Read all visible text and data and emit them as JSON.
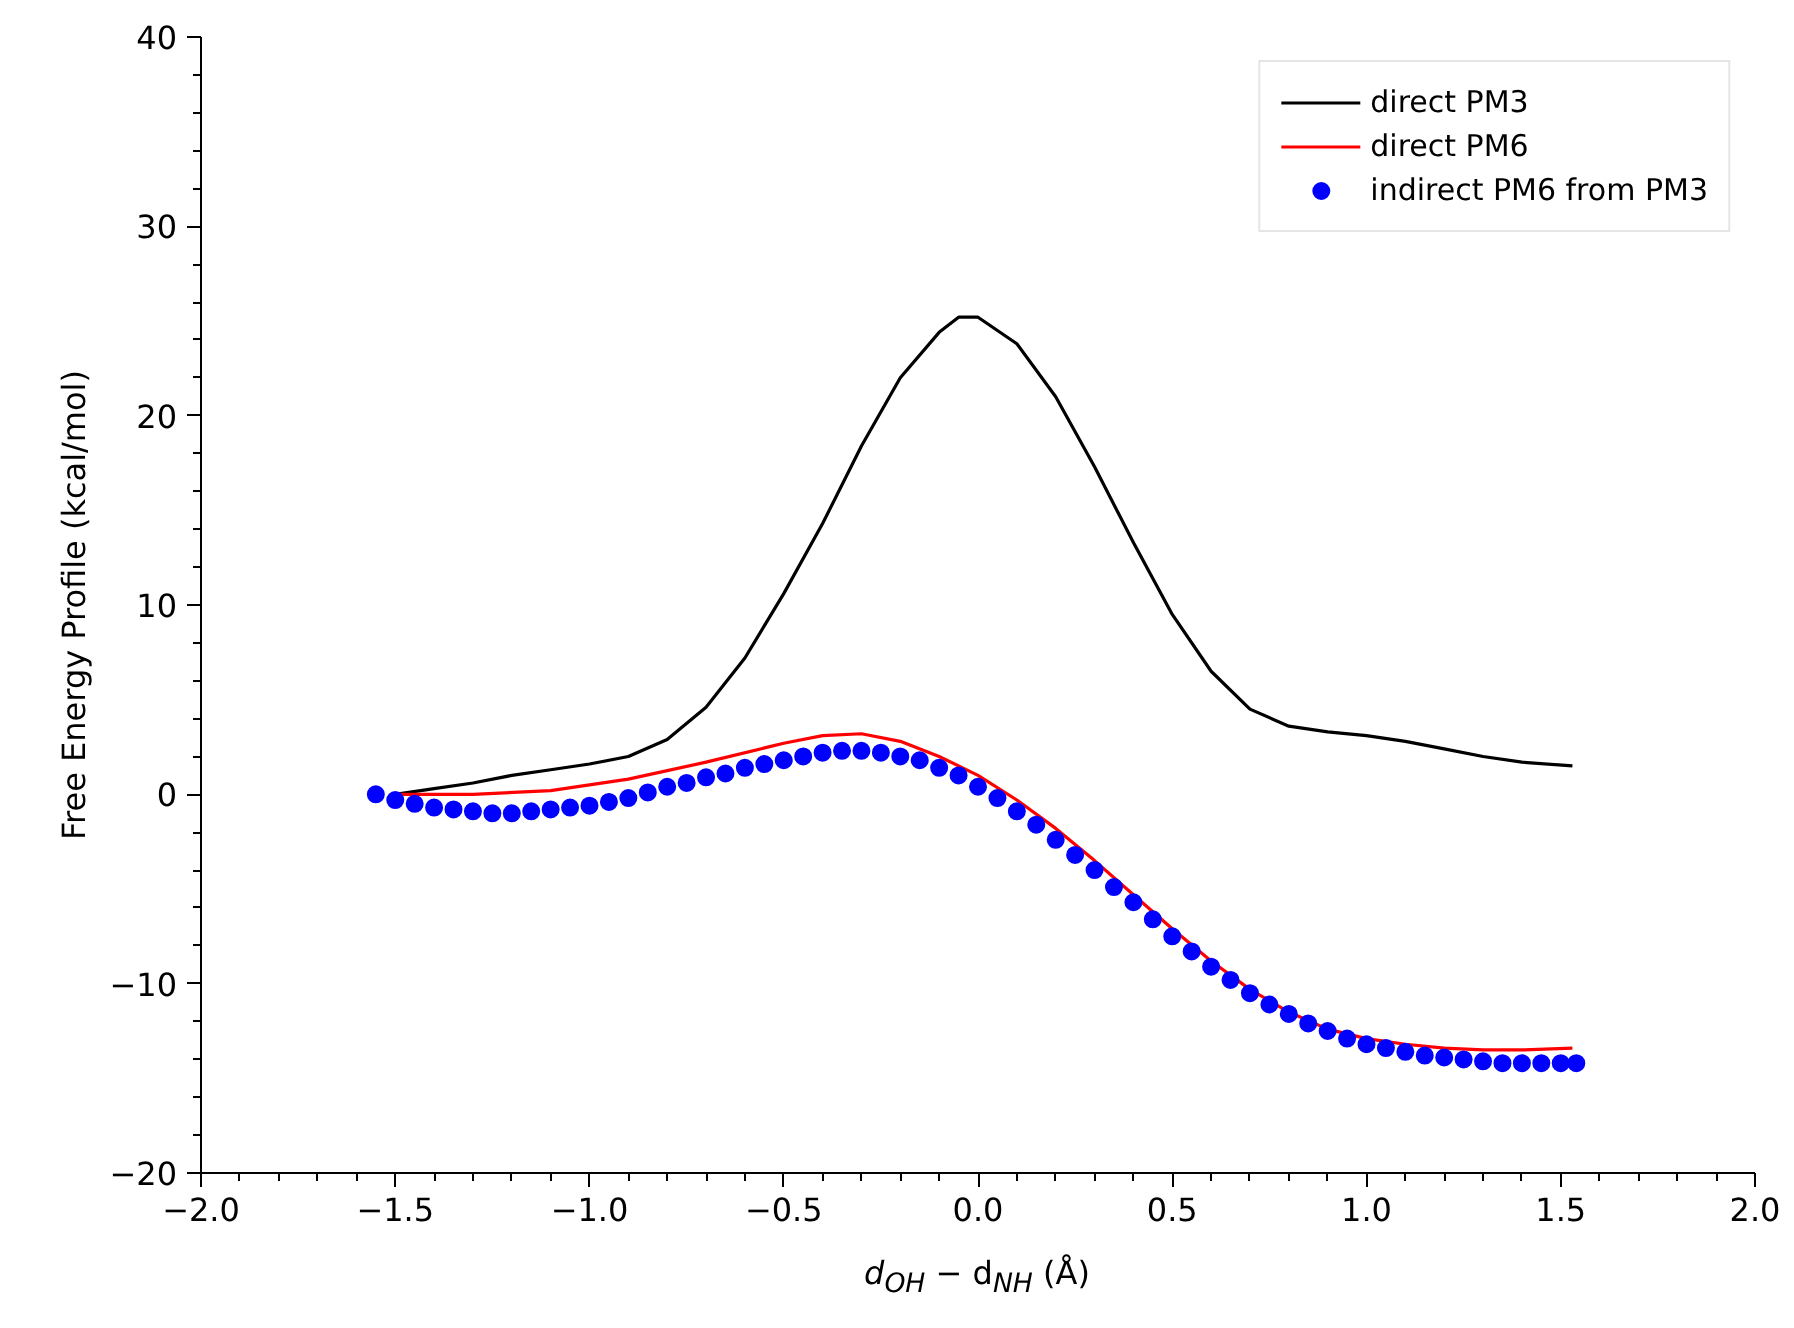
{
  "chart_data": {
    "type": "line",
    "xlabel": "d$_{OH}$ − d$_{NH}$ (Å)",
    "ylabel": "Free Energy Profile (kcal/mol)",
    "xlim": [
      -2.0,
      2.0
    ],
    "xticks": [
      {
        "value": -2.0,
        "label": "−2.0"
      },
      {
        "value": -1.5,
        "label": "−1.5"
      },
      {
        "value": -1.0,
        "label": "−1.0"
      },
      {
        "value": -0.5,
        "label": "−0.5"
      },
      {
        "value": 0.0,
        "label": "0.0"
      },
      {
        "value": 0.5,
        "label": "0.5"
      },
      {
        "value": 1.0,
        "label": "1.0"
      },
      {
        "value": 1.5,
        "label": "1.5"
      },
      {
        "value": 2.0,
        "label": "2.0"
      }
    ],
    "ylim": [
      -20,
      40
    ],
    "yticks": [
      {
        "value": -20,
        "label": "−20"
      },
      {
        "value": -10,
        "label": "−10"
      },
      0,
      10,
      20,
      30,
      40
    ],
    "legend": "top right",
    "grid": false,
    "series": [
      {
        "name": "direct PM3",
        "color": "#000000",
        "x": [
          -1.5,
          -1.4,
          -1.3,
          -1.2,
          -1.1,
          -1.0,
          -0.9,
          -0.8,
          -0.7,
          -0.6,
          -0.5,
          -0.4,
          -0.3,
          -0.2,
          -0.1,
          -0.05,
          0.0,
          0.1,
          0.2,
          0.3,
          0.4,
          0.5,
          0.6,
          0.7,
          0.8,
          0.9,
          1.0,
          1.1,
          1.2,
          1.3,
          1.4,
          1.53
        ],
        "values": [
          0,
          0.3,
          0.6,
          1.0,
          1.3,
          1.6,
          2.0,
          2.9,
          4.6,
          7.2,
          10.6,
          14.3,
          18.4,
          22.0,
          24.4,
          25.2,
          25.2,
          23.8,
          21.0,
          17.3,
          13.3,
          9.5,
          6.5,
          4.5,
          3.6,
          3.3,
          3.1,
          2.8,
          2.4,
          2.0,
          1.7,
          1.5
        ]
      },
      {
        "name": "direct PM6",
        "color": "#ff0000",
        "x": [
          -1.5,
          -1.3,
          -1.1,
          -0.9,
          -0.7,
          -0.5,
          -0.4,
          -0.3,
          -0.2,
          -0.1,
          0.0,
          0.1,
          0.2,
          0.3,
          0.4,
          0.5,
          0.6,
          0.7,
          0.8,
          0.9,
          1.0,
          1.1,
          1.2,
          1.3,
          1.4,
          1.53
        ],
        "values": [
          0,
          0,
          0.2,
          0.8,
          1.7,
          2.7,
          3.1,
          3.2,
          2.8,
          2.0,
          1.0,
          -0.3,
          -1.8,
          -3.5,
          -5.3,
          -7.1,
          -8.8,
          -10.3,
          -11.5,
          -12.4,
          -12.9,
          -13.2,
          -13.4,
          -13.5,
          -13.5,
          -13.4
        ]
      },
      {
        "name": "indirect PM6 from PM3",
        "color": "#0000ff",
        "type": "scatter",
        "marker": "circle",
        "x": [
          -1.55,
          -1.5,
          -1.45,
          -1.4,
          -1.35,
          -1.3,
          -1.25,
          -1.2,
          -1.15,
          -1.1,
          -1.05,
          -1.0,
          -0.95,
          -0.9,
          -0.85,
          -0.8,
          -0.75,
          -0.7,
          -0.65,
          -0.6,
          -0.55,
          -0.5,
          -0.45,
          -0.4,
          -0.35,
          -0.3,
          -0.25,
          -0.2,
          -0.15,
          -0.1,
          -0.05,
          0.0,
          0.05,
          0.1,
          0.15,
          0.2,
          0.25,
          0.3,
          0.35,
          0.4,
          0.45,
          0.5,
          0.55,
          0.6,
          0.65,
          0.7,
          0.75,
          0.8,
          0.85,
          0.9,
          0.95,
          1.0,
          1.05,
          1.1,
          1.15,
          1.2,
          1.25,
          1.3,
          1.35,
          1.4,
          1.45,
          1.5,
          1.54
        ],
        "values": [
          0,
          -0.3,
          -0.5,
          -0.7,
          -0.8,
          -0.9,
          -1.0,
          -1.0,
          -0.9,
          -0.8,
          -0.7,
          -0.6,
          -0.4,
          -0.2,
          0.1,
          0.4,
          0.6,
          0.9,
          1.1,
          1.4,
          1.6,
          1.8,
          2.0,
          2.2,
          2.3,
          2.3,
          2.2,
          2.0,
          1.8,
          1.4,
          1.0,
          0.4,
          -0.2,
          -0.9,
          -1.6,
          -2.4,
          -3.2,
          -4.0,
          -4.9,
          -5.7,
          -6.6,
          -7.5,
          -8.3,
          -9.1,
          -9.8,
          -10.5,
          -11.1,
          -11.6,
          -12.1,
          -12.5,
          -12.9,
          -13.2,
          -13.4,
          -13.6,
          -13.8,
          -13.9,
          -14.0,
          -14.1,
          -14.2,
          -14.2,
          -14.2,
          -14.2,
          -14.2
        ]
      }
    ]
  }
}
